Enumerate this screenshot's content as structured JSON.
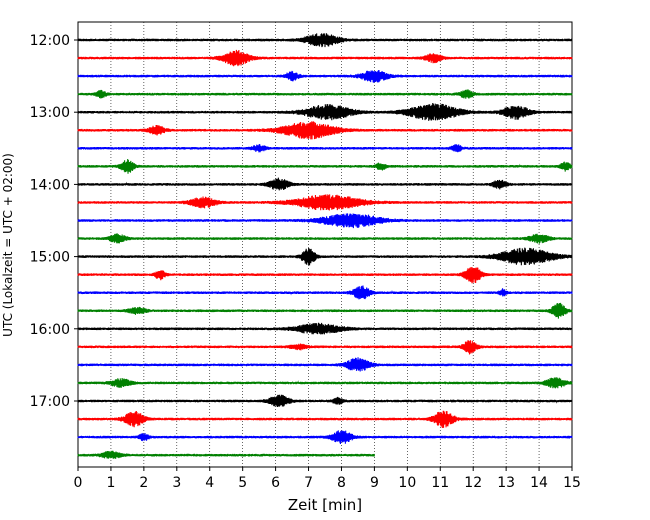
{
  "chart_data": {
    "type": "line",
    "title": "",
    "xlabel": "Zeit  [min]",
    "ylabel": "UTC (Lokalzeit = UTC + 02:00)",
    "xlim": [
      0,
      15
    ],
    "x_ticks": [
      "0",
      "1",
      "2",
      "3",
      "4",
      "5",
      "6",
      "7",
      "8",
      "9",
      "10",
      "11",
      "12",
      "13",
      "14",
      "15"
    ],
    "y_ticks": [
      "12:00",
      "13:00",
      "14:00",
      "15:00",
      "16:00",
      "17:00"
    ],
    "grid": "vertical dotted",
    "trace_interval_minutes": 15,
    "trace_colors": [
      "#000000",
      "#ff0000",
      "#0000ff",
      "#008000"
    ],
    "traces": [
      {
        "start": "12:00",
        "end_min": 15,
        "bursts": [
          [
            7.4,
            1.0,
            0.8
          ]
        ]
      },
      {
        "start": "12:15",
        "end_min": 15,
        "bursts": [
          [
            4.8,
            0.8,
            0.9
          ],
          [
            10.8,
            0.5,
            0.5
          ]
        ]
      },
      {
        "start": "12:30",
        "end_min": 15,
        "bursts": [
          [
            6.5,
            0.4,
            0.5
          ],
          [
            9.0,
            0.8,
            0.7
          ]
        ]
      },
      {
        "start": "12:45",
        "end_min": 15,
        "bursts": [
          [
            0.7,
            0.3,
            0.4
          ],
          [
            11.8,
            0.4,
            0.5
          ]
        ]
      },
      {
        "start": "13:00",
        "end_min": 15,
        "bursts": [
          [
            7.6,
            1.4,
            0.9
          ],
          [
            10.8,
            1.5,
            1.0
          ],
          [
            13.3,
            0.8,
            0.8
          ]
        ]
      },
      {
        "start": "13:15",
        "end_min": 15,
        "bursts": [
          [
            2.4,
            0.5,
            0.5
          ],
          [
            7.0,
            1.6,
            1.0
          ]
        ]
      },
      {
        "start": "13:30",
        "end_min": 15,
        "bursts": [
          [
            5.5,
            0.4,
            0.4
          ],
          [
            11.5,
            0.3,
            0.4
          ]
        ]
      },
      {
        "start": "13:45",
        "end_min": 15,
        "bursts": [
          [
            1.5,
            0.4,
            0.8
          ],
          [
            9.2,
            0.3,
            0.4
          ],
          [
            14.8,
            0.3,
            0.5
          ]
        ]
      },
      {
        "start": "14:00",
        "end_min": 15,
        "bursts": [
          [
            6.1,
            0.6,
            0.7
          ],
          [
            12.8,
            0.4,
            0.5
          ]
        ]
      },
      {
        "start": "14:15",
        "end_min": 15,
        "bursts": [
          [
            3.8,
            0.8,
            0.6
          ],
          [
            7.6,
            2.0,
            0.9
          ]
        ]
      },
      {
        "start": "14:30",
        "end_min": 15,
        "bursts": [
          [
            8.3,
            1.8,
            0.8
          ]
        ]
      },
      {
        "start": "14:45",
        "end_min": 15,
        "bursts": [
          [
            1.2,
            0.5,
            0.5
          ],
          [
            14.0,
            0.6,
            0.5
          ]
        ]
      },
      {
        "start": "15:00",
        "end_min": 15,
        "bursts": [
          [
            7.0,
            0.4,
            1.0
          ],
          [
            13.6,
            1.6,
            1.0
          ]
        ]
      },
      {
        "start": "15:15",
        "end_min": 15,
        "bursts": [
          [
            2.5,
            0.3,
            0.6
          ],
          [
            12.0,
            0.5,
            1.0
          ]
        ]
      },
      {
        "start": "15:30",
        "end_min": 15,
        "bursts": [
          [
            8.6,
            0.5,
            0.8
          ],
          [
            12.9,
            0.2,
            0.4
          ]
        ]
      },
      {
        "start": "15:45",
        "end_min": 15,
        "bursts": [
          [
            1.8,
            0.5,
            0.4
          ],
          [
            14.6,
            0.4,
            1.0
          ]
        ]
      },
      {
        "start": "16:00",
        "end_min": 15,
        "bursts": [
          [
            7.3,
            1.4,
            0.6
          ]
        ]
      },
      {
        "start": "16:15",
        "end_min": 15,
        "bursts": [
          [
            6.7,
            0.5,
            0.3
          ],
          [
            11.9,
            0.4,
            0.8
          ]
        ]
      },
      {
        "start": "16:30",
        "end_min": 15,
        "bursts": [
          [
            8.5,
            0.7,
            0.8
          ]
        ]
      },
      {
        "start": "16:45",
        "end_min": 15,
        "bursts": [
          [
            1.3,
            0.6,
            0.5
          ],
          [
            14.5,
            0.6,
            0.6
          ]
        ]
      },
      {
        "start": "17:00",
        "end_min": 15,
        "bursts": [
          [
            6.1,
            0.6,
            0.7
          ],
          [
            7.9,
            0.3,
            0.4
          ]
        ]
      },
      {
        "start": "17:15",
        "end_min": 15,
        "bursts": [
          [
            1.7,
            0.6,
            0.9
          ],
          [
            11.1,
            0.6,
            1.0
          ]
        ]
      },
      {
        "start": "17:30",
        "end_min": 15,
        "bursts": [
          [
            2.0,
            0.3,
            0.4
          ],
          [
            8.0,
            0.6,
            0.8
          ]
        ]
      },
      {
        "start": "17:45",
        "end_min": 9,
        "bursts": [
          [
            1.0,
            0.6,
            0.4
          ]
        ]
      }
    ]
  }
}
